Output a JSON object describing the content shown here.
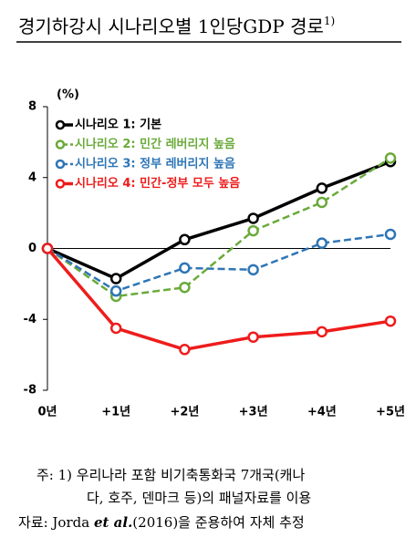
{
  "title": "경기하강시 시나리오별 1인당GDP 경로",
  "title_footnote_mark": "1)",
  "chart_data": {
    "type": "line",
    "y_unit": "(%)",
    "categories": [
      "0년",
      "+1년",
      "+2년",
      "+3년",
      "+4년",
      "+5년"
    ],
    "series": [
      {
        "name": "시나리오 1: 기본",
        "color": "#000000",
        "dashed": false,
        "values": [
          0,
          -1.7,
          0.5,
          1.7,
          3.4,
          4.9
        ]
      },
      {
        "name": "시나리오 2: 민간 레버리지 높음",
        "color": "#6aaa3a",
        "dashed": true,
        "values": [
          0,
          -2.7,
          -2.2,
          1.0,
          2.6,
          5.1
        ]
      },
      {
        "name": "시나리오 3: 정부 레버리지 높음",
        "color": "#2e75b6",
        "dashed": true,
        "values": [
          0,
          -2.4,
          -1.1,
          -1.2,
          0.3,
          0.8
        ]
      },
      {
        "name": "시나리오 4: 민간-정부 모두 높음",
        "color": "#ee1c1c",
        "dashed": false,
        "values": [
          0,
          -4.5,
          -5.7,
          -5.0,
          -4.7,
          -4.1
        ]
      }
    ],
    "ylim": [
      -8,
      8
    ],
    "yticks": [
      -8,
      -4,
      0,
      4,
      8
    ],
    "grid": false,
    "legend": "upper left"
  },
  "notes": [
    "주: 1) 우리나라 포함 비기축통화국 7개국(캐나",
    "다, 호주, 덴마크 등)의 패널자료를 이용"
  ],
  "source": [
    "자료: Jorda ",
    "et al.",
    "(2016)을 준용하여 자체 추정"
  ]
}
